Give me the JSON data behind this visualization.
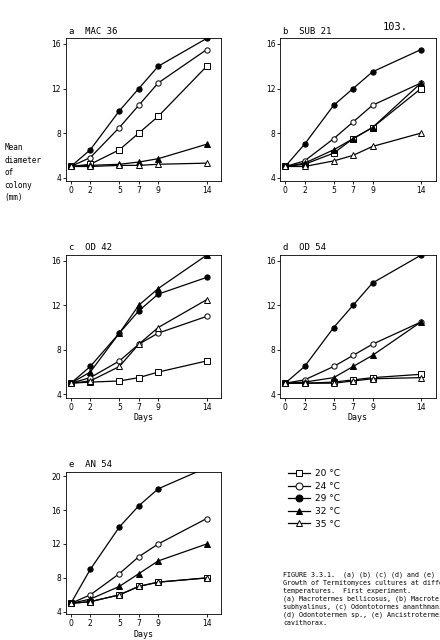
{
  "page_number": "103.",
  "ylabel_lines": [
    "Mean",
    "diameter",
    "of",
    "colony",
    "(mm)"
  ],
  "xlabel": "Days",
  "days": [
    0,
    2,
    5,
    7,
    9,
    14
  ],
  "subplots": [
    {
      "label": "a  MAC 36",
      "ylim": [
        4,
        16
      ],
      "yticks": [
        4,
        8,
        12,
        16
      ],
      "series": [
        [
          5.0,
          5.2,
          6.5,
          8.0,
          9.5,
          14.0
        ],
        [
          5.0,
          5.8,
          8.5,
          10.5,
          12.5,
          15.5
        ],
        [
          5.0,
          6.5,
          10.0,
          12.0,
          14.0,
          16.5
        ],
        [
          5.0,
          5.1,
          5.2,
          5.4,
          5.7,
          7.0
        ],
        [
          5.0,
          5.0,
          5.1,
          5.1,
          5.2,
          5.3
        ]
      ]
    },
    {
      "label": "b  SUB 21",
      "ylim": [
        4,
        16
      ],
      "yticks": [
        4,
        8,
        12,
        16
      ],
      "series": [
        [
          5.0,
          5.2,
          6.2,
          7.5,
          8.5,
          12.0
        ],
        [
          5.0,
          5.5,
          7.5,
          9.0,
          10.5,
          12.5
        ],
        [
          5.0,
          7.0,
          10.5,
          12.0,
          13.5,
          15.5
        ],
        [
          5.0,
          5.3,
          6.5,
          7.5,
          8.5,
          12.5
        ],
        [
          5.0,
          5.0,
          5.5,
          6.0,
          6.8,
          8.0
        ]
      ]
    },
    {
      "label": "c  OD 42",
      "ylim": [
        4,
        16
      ],
      "yticks": [
        4,
        8,
        12,
        16
      ],
      "series": [
        [
          5.0,
          5.1,
          5.2,
          5.5,
          6.0,
          7.0
        ],
        [
          5.0,
          5.5,
          7.0,
          8.5,
          9.5,
          11.0
        ],
        [
          5.0,
          6.5,
          9.5,
          11.5,
          13.0,
          14.5
        ],
        [
          5.0,
          6.0,
          9.5,
          12.0,
          13.5,
          16.5
        ],
        [
          5.0,
          5.2,
          6.5,
          8.5,
          10.0,
          12.5
        ]
      ]
    },
    {
      "label": "d  OD 54",
      "ylim": [
        4,
        16
      ],
      "yticks": [
        4,
        8,
        12,
        16
      ],
      "series": [
        [
          5.0,
          5.0,
          5.1,
          5.3,
          5.5,
          5.8
        ],
        [
          5.0,
          5.3,
          6.5,
          7.5,
          8.5,
          10.5
        ],
        [
          5.0,
          6.5,
          10.0,
          12.0,
          14.0,
          16.5
        ],
        [
          5.0,
          5.1,
          5.5,
          6.5,
          7.5,
          10.5
        ],
        [
          5.0,
          5.0,
          5.0,
          5.2,
          5.4,
          5.5
        ]
      ]
    },
    {
      "label": "e  AN 54",
      "ylim": [
        4,
        20
      ],
      "yticks": [
        4,
        8,
        12,
        16,
        20
      ],
      "series": [
        [
          5.0,
          5.2,
          6.0,
          7.0,
          7.5,
          8.0
        ],
        [
          5.0,
          6.0,
          8.5,
          10.5,
          12.0,
          15.0
        ],
        [
          5.0,
          9.0,
          14.0,
          16.5,
          18.5,
          21.0
        ],
        [
          5.0,
          5.5,
          7.0,
          8.5,
          10.0,
          12.0
        ],
        [
          5.0,
          5.2,
          6.0,
          7.0,
          7.5,
          8.0
        ]
      ]
    }
  ],
  "series_styles": [
    {
      "marker": "s",
      "filled": false,
      "label": "20 °C"
    },
    {
      "marker": "o",
      "filled": false,
      "label": "24 °C"
    },
    {
      "marker": "o",
      "filled": true,
      "label": "29 °C"
    },
    {
      "marker": "^",
      "filled": true,
      "label": "32 °C"
    },
    {
      "marker": "^",
      "filled": false,
      "label": "35 °C"
    }
  ],
  "caption_lines": [
    "FIGURE 3.3.1.  (a) (b) (c) (d) and (e)",
    "Growth of Termitomyces cultures at different",
    "temperatures.  First experiment.",
    "(a) Macrotermes bellicosus, (b) Macrotermes",
    "subhyalinus, (c) Odontotormes ananthmani,",
    "(d) Odontotermen sp., (e) Ancistrotermes",
    "cavithorax."
  ]
}
